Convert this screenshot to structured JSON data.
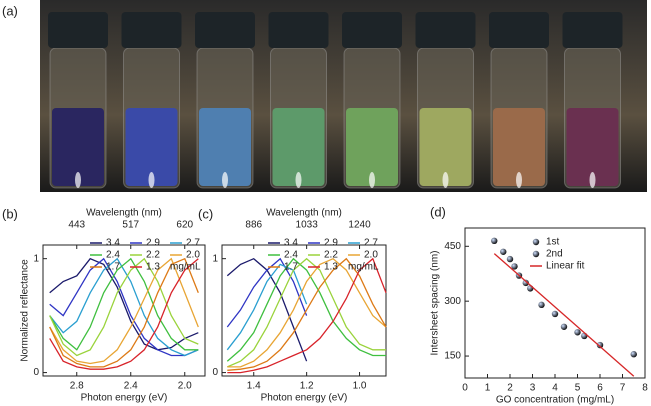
{
  "photo": {
    "label": "(a)"
  },
  "chart_data": [
    {
      "type": "line",
      "panel_label": "(b)",
      "xlabel": "Photon energy (eV)",
      "ylabel": "Normalized reflectance",
      "x2label": "Wavelength (nm)",
      "xlim": [
        3.05,
        1.85
      ],
      "ylim": [
        -0.03,
        1.12
      ],
      "xticks": [
        2.8,
        2.4,
        {
          "value": 2.0,
          "label": "2.0"
        }
      ],
      "yticks": [
        0,
        1
      ],
      "x2ticks": [
        {
          "value": 2.8,
          "label": "443"
        },
        {
          "value": 2.4,
          "label": "517"
        },
        {
          "value": 2.0,
          "label": "620"
        }
      ],
      "legend_unit": "mg/mL",
      "x": [
        3.0,
        2.9,
        2.8,
        2.7,
        2.6,
        2.5,
        2.4,
        2.3,
        2.2,
        2.1,
        2.0,
        1.9
      ],
      "series": [
        {
          "name": "3.4",
          "color": "#1b1a6b",
          "values": [
            0.7,
            0.8,
            0.85,
            1.0,
            0.95,
            0.75,
            0.45,
            0.25,
            0.2,
            0.22,
            0.3,
            0.35
          ]
        },
        {
          "name": "2.9",
          "color": "#2f35c4",
          "values": [
            0.6,
            0.5,
            0.7,
            0.9,
            1.0,
            0.8,
            0.5,
            0.3,
            0.2,
            0.15,
            0.15,
            0.2
          ]
        },
        {
          "name": "2.7",
          "color": "#2a9fd0",
          "values": [
            0.5,
            0.35,
            0.45,
            0.7,
            0.9,
            1.0,
            0.8,
            0.5,
            0.3,
            0.2,
            0.15,
            0.2
          ]
        },
        {
          "name": "2.4",
          "color": "#3fbf3f",
          "values": [
            0.5,
            0.3,
            0.2,
            0.4,
            0.7,
            0.9,
            1.0,
            0.8,
            0.5,
            0.3,
            0.2,
            0.2
          ]
        },
        {
          "name": "2.2",
          "color": "#9ad33b",
          "values": [
            0.5,
            0.25,
            0.15,
            0.2,
            0.4,
            0.7,
            0.9,
            1.0,
            0.8,
            0.5,
            0.3,
            0.25
          ]
        },
        {
          "name": "2.0",
          "color": "#e8a534",
          "values": [
            0.4,
            0.2,
            0.1,
            0.08,
            0.1,
            0.2,
            0.4,
            0.65,
            0.9,
            1.0,
            0.7,
            0.4
          ]
        },
        {
          "name": "1.7",
          "color": "#dd7a16",
          "values": [
            0.4,
            0.15,
            0.08,
            0.05,
            0.05,
            0.1,
            0.2,
            0.4,
            0.7,
            0.95,
            1.0,
            0.7
          ]
        },
        {
          "name": "1.3",
          "color": "#d8232a",
          "values": [
            0.3,
            0.1,
            0.05,
            0.03,
            0.03,
            0.05,
            0.1,
            0.2,
            0.4,
            0.7,
            0.9,
            1.0
          ]
        }
      ]
    },
    {
      "type": "line",
      "panel_label": "(c)",
      "xlabel": "Photon energy (eV)",
      "x2label": "Wavelength (nm)",
      "xlim": [
        1.52,
        0.9
      ],
      "ylim": [
        -0.03,
        1.12
      ],
      "xticks": [
        1.4,
        1.2,
        {
          "value": 1.0,
          "label": "1.0"
        }
      ],
      "yticks": [
        0,
        1
      ],
      "x2ticks": [
        {
          "value": 1.4,
          "label": "886"
        },
        {
          "value": 1.2,
          "label": "1033"
        },
        {
          "value": 1.0,
          "label": "1240"
        }
      ],
      "legend_unit": "mg/mL",
      "x": [
        1.5,
        1.45,
        1.4,
        1.35,
        1.3,
        1.25,
        1.2,
        1.15,
        1.1,
        1.05,
        1.0,
        0.95,
        0.9
      ],
      "series": [
        {
          "name": "3.4",
          "color": "#1b1a6b",
          "values": [
            0.85,
            0.95,
            1.0,
            0.9,
            0.7,
            0.4,
            0.1,
            null,
            null,
            null,
            null,
            null,
            null
          ]
        },
        {
          "name": "2.9",
          "color": "#2f35c4",
          "values": [
            0.4,
            0.55,
            0.75,
            0.9,
            1.0,
            0.8,
            0.5,
            null,
            null,
            null,
            null,
            null,
            null
          ]
        },
        {
          "name": "2.7",
          "color": "#2a9fd0",
          "values": [
            0.2,
            0.35,
            0.55,
            0.8,
            0.95,
            0.9,
            0.6,
            null,
            null,
            null,
            null,
            null,
            null
          ]
        },
        {
          "name": "2.4",
          "color": "#3fbf3f",
          "values": [
            0.1,
            0.2,
            0.35,
            0.6,
            0.85,
            1.0,
            0.9,
            0.7,
            0.45,
            0.3,
            0.2,
            0.15,
            0.15
          ]
        },
        {
          "name": "2.2",
          "color": "#9ad33b",
          "values": [
            0.05,
            0.1,
            0.2,
            0.4,
            0.65,
            0.9,
            1.0,
            0.9,
            0.65,
            0.4,
            0.25,
            0.2,
            0.2
          ]
        },
        {
          "name": "2.0",
          "color": "#e8a534",
          "values": [
            0.05,
            0.05,
            0.1,
            0.2,
            0.35,
            0.55,
            0.8,
            0.95,
            1.0,
            0.9,
            0.7,
            0.5,
            0.4
          ]
        },
        {
          "name": "1.7",
          "color": "#dd7a16",
          "values": [
            0.02,
            0.03,
            0.05,
            0.1,
            0.2,
            0.35,
            0.55,
            0.75,
            0.9,
            1.0,
            0.85,
            0.6,
            0.4
          ]
        },
        {
          "name": "1.3",
          "color": "#d8232a",
          "values": [
            0.0,
            0.0,
            0.02,
            0.05,
            0.1,
            0.15,
            0.2,
            0.3,
            0.45,
            0.65,
            0.9,
            1.0,
            0.7
          ]
        }
      ]
    },
    {
      "type": "scatter",
      "panel_label": "(d)",
      "xlabel": "GO concentration (mg/mL)",
      "ylabel": "Intersheet spacing (nm)",
      "xlim": [
        0,
        8
      ],
      "ylim": [
        90,
        500
      ],
      "xticks": [
        0,
        1,
        2,
        3,
        4,
        5,
        6,
        7,
        8
      ],
      "yticks": [
        150,
        300,
        450
      ],
      "series": [
        {
          "name": "1st",
          "color": "#2f4f9e",
          "x": [
            1.3,
            2.0,
            2.4,
            2.9,
            3.4,
            4.4,
            5.3,
            6.0
          ],
          "values": [
            465,
            415,
            370,
            335,
            290,
            230,
            205,
            180
          ]
        },
        {
          "name": "2nd",
          "color": "#4a6fc0",
          "x": [
            1.7,
            2.2,
            2.7,
            4.0,
            5.0,
            7.5
          ],
          "values": [
            435,
            395,
            350,
            265,
            215,
            155
          ]
        },
        {
          "name": "Linear fit",
          "color": "#d62728",
          "type": "line",
          "x": [
            1.3,
            7.5
          ],
          "values": [
            430,
            95
          ]
        }
      ]
    }
  ]
}
